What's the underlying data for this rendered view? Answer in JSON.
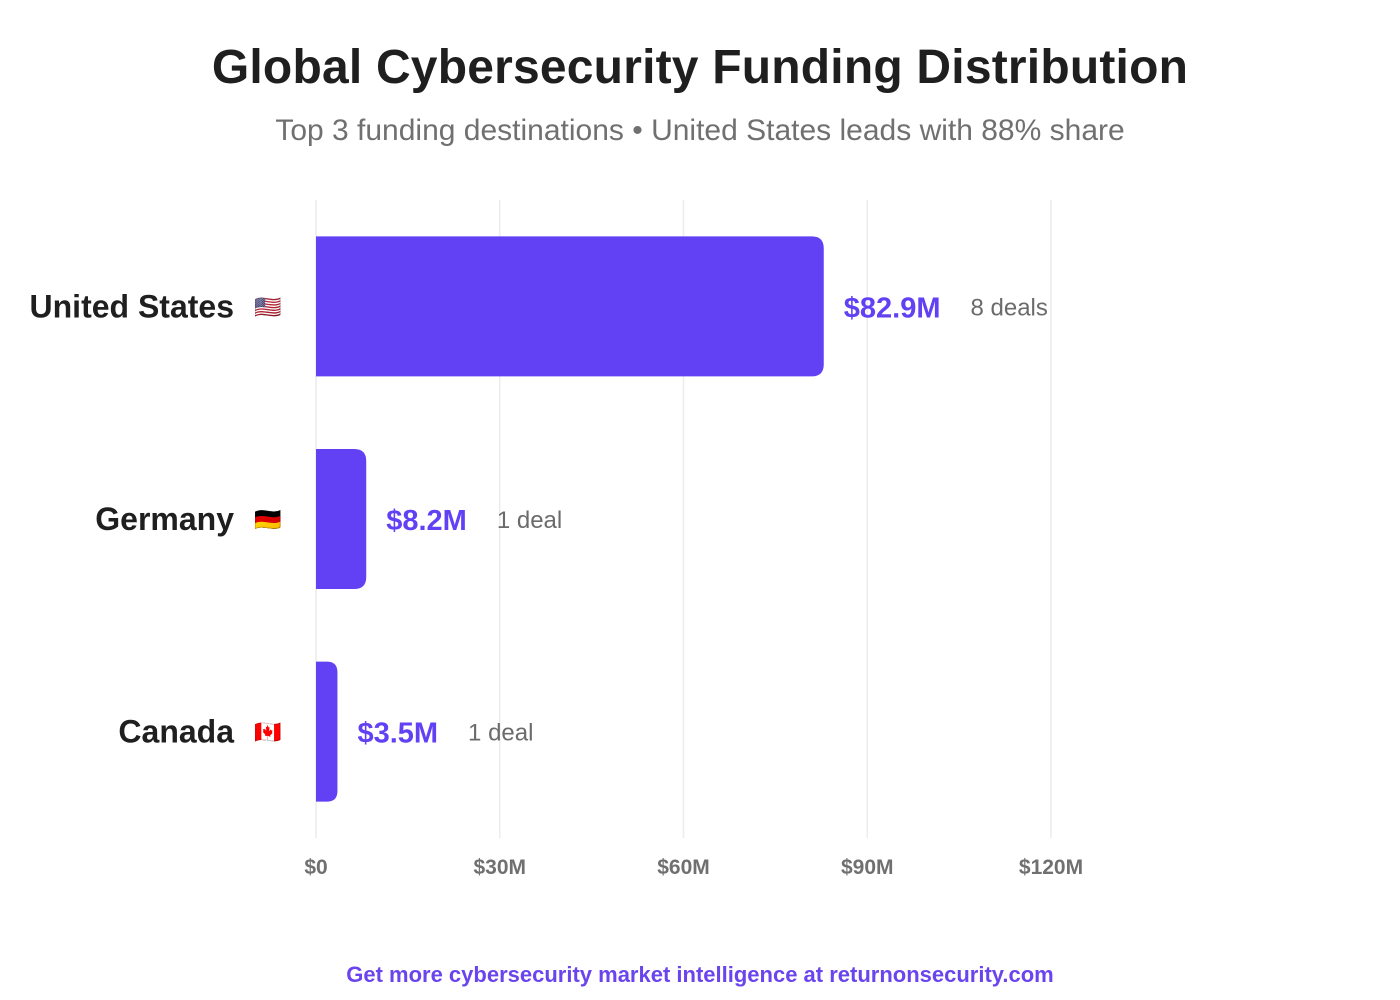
{
  "chart_data": {
    "type": "bar",
    "orientation": "horizontal",
    "title": "Global Cybersecurity Funding Distribution",
    "subtitle": "Top 3 funding destinations • United States leads with 88% share",
    "categories": [
      "United States",
      "Germany",
      "Canada"
    ],
    "flags": [
      "🇺🇸",
      "🇩🇪",
      "🇨🇦"
    ],
    "values": [
      82.9,
      8.2,
      3.5
    ],
    "value_labels": [
      "$82.9M",
      "$8.2M",
      "$3.5M"
    ],
    "deal_labels": [
      "8 deals",
      "1 deal",
      "1 deal"
    ],
    "unit": "$M",
    "xlim": [
      0,
      120
    ],
    "xticks": [
      0,
      30,
      60,
      90,
      120
    ],
    "xtick_labels": [
      "$0",
      "$30M",
      "$60M",
      "$90M",
      "$120M"
    ],
    "xlabel": "",
    "ylabel": "",
    "grid": true,
    "colors": {
      "bar": "#6241f5",
      "value_label": "#6241f5",
      "deal_label": "#6b6b6b",
      "category_label": "#1f1f1f",
      "tick_label": "#707070",
      "grid": "#ececec"
    }
  },
  "footer": {
    "link_text": "Get more cybersecurity market intelligence at returnonsecurity.com",
    "color": "#6a45ee"
  }
}
